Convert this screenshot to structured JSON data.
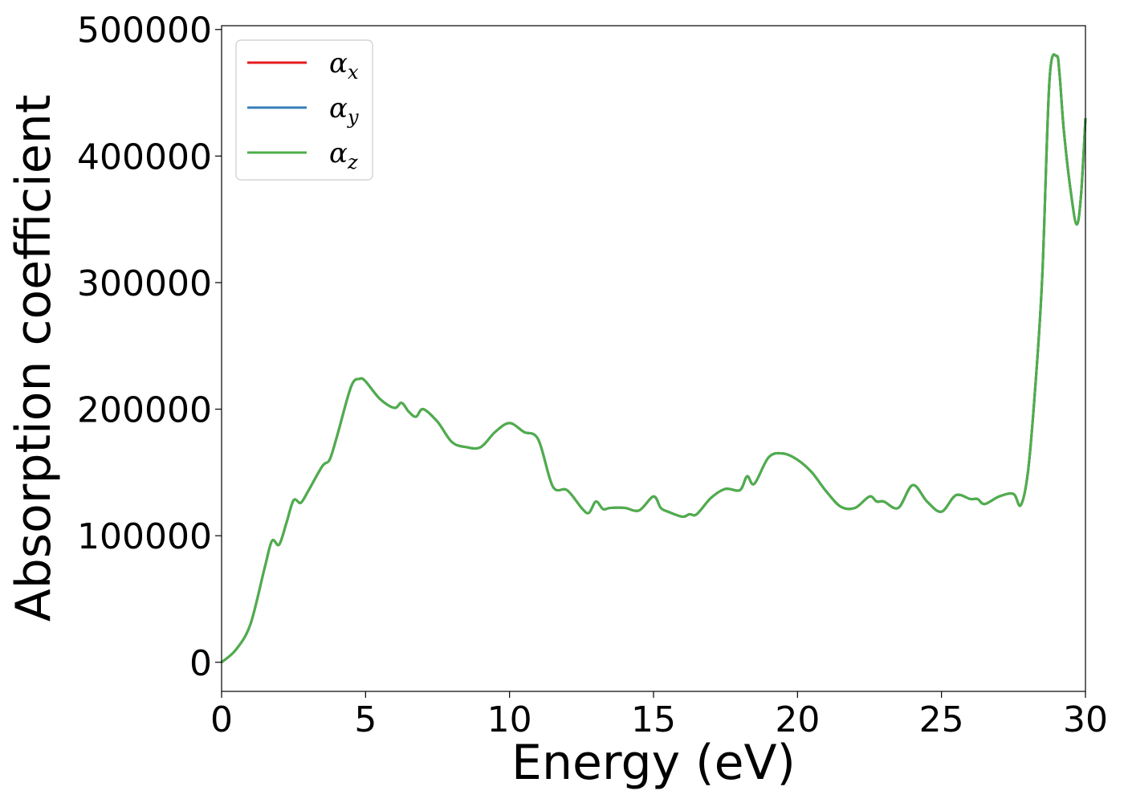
{
  "chart_data": {
    "type": "line",
    "xlabel": "Energy (eV)",
    "ylabel": "Absorption coefficient",
    "xlim": [
      0,
      30
    ],
    "ylim": [
      -23000,
      503000
    ],
    "x_ticks": [
      0,
      5,
      10,
      15,
      20,
      25,
      30
    ],
    "y_ticks": [
      0,
      100000,
      200000,
      300000,
      400000,
      500000
    ],
    "grid": false,
    "legend_position": "top-left",
    "series": [
      {
        "name": "α",
        "subscript": "x",
        "color": "#e41a1c"
      },
      {
        "name": "α",
        "subscript": "y",
        "color": "#377eb8"
      },
      {
        "name": "α",
        "subscript": "z",
        "color": "#4daf4a"
      }
    ],
    "x": [
      0,
      0.5,
      1.0,
      1.5,
      1.75,
      2.0,
      2.25,
      2.5,
      2.75,
      3.0,
      3.5,
      3.75,
      4.0,
      4.5,
      4.8,
      5.0,
      5.5,
      6.0,
      6.25,
      6.5,
      6.75,
      7.0,
      7.5,
      8.0,
      8.5,
      9.0,
      9.5,
      10.0,
      10.5,
      11.0,
      11.5,
      12.0,
      12.5,
      12.75,
      13.0,
      13.25,
      13.5,
      14.0,
      14.5,
      15.0,
      15.25,
      15.5,
      16.0,
      16.25,
      16.5,
      17.0,
      17.5,
      18.0,
      18.25,
      18.5,
      19.0,
      19.5,
      20.0,
      20.5,
      21.0,
      21.5,
      22.0,
      22.5,
      22.75,
      23.0,
      23.5,
      24.0,
      24.5,
      25.0,
      25.5,
      26.0,
      26.25,
      26.5,
      27.0,
      27.5,
      27.75,
      28.0,
      28.25,
      28.5,
      28.75,
      29.0,
      29.1,
      29.25,
      29.5,
      29.7,
      29.85,
      30.0
    ],
    "y": [
      0,
      10000,
      30000,
      75000,
      96000,
      93000,
      110000,
      128000,
      126000,
      135000,
      155000,
      160000,
      178000,
      218000,
      224000,
      222000,
      208000,
      201000,
      205000,
      198000,
      194000,
      200000,
      190000,
      174000,
      170000,
      170000,
      182000,
      189000,
      182000,
      176000,
      139000,
      136000,
      122000,
      118000,
      127000,
      121000,
      122000,
      122000,
      120000,
      131000,
      122000,
      119000,
      115000,
      117000,
      117000,
      130000,
      137000,
      136000,
      147000,
      141000,
      162000,
      165000,
      160000,
      150000,
      135000,
      123000,
      122000,
      131000,
      127000,
      127000,
      122000,
      140000,
      127000,
      119000,
      132000,
      129000,
      129000,
      125000,
      131000,
      133000,
      124000,
      150000,
      215000,
      305000,
      460000,
      479000,
      465000,
      420000,
      370000,
      346000,
      370000,
      430000
    ]
  }
}
